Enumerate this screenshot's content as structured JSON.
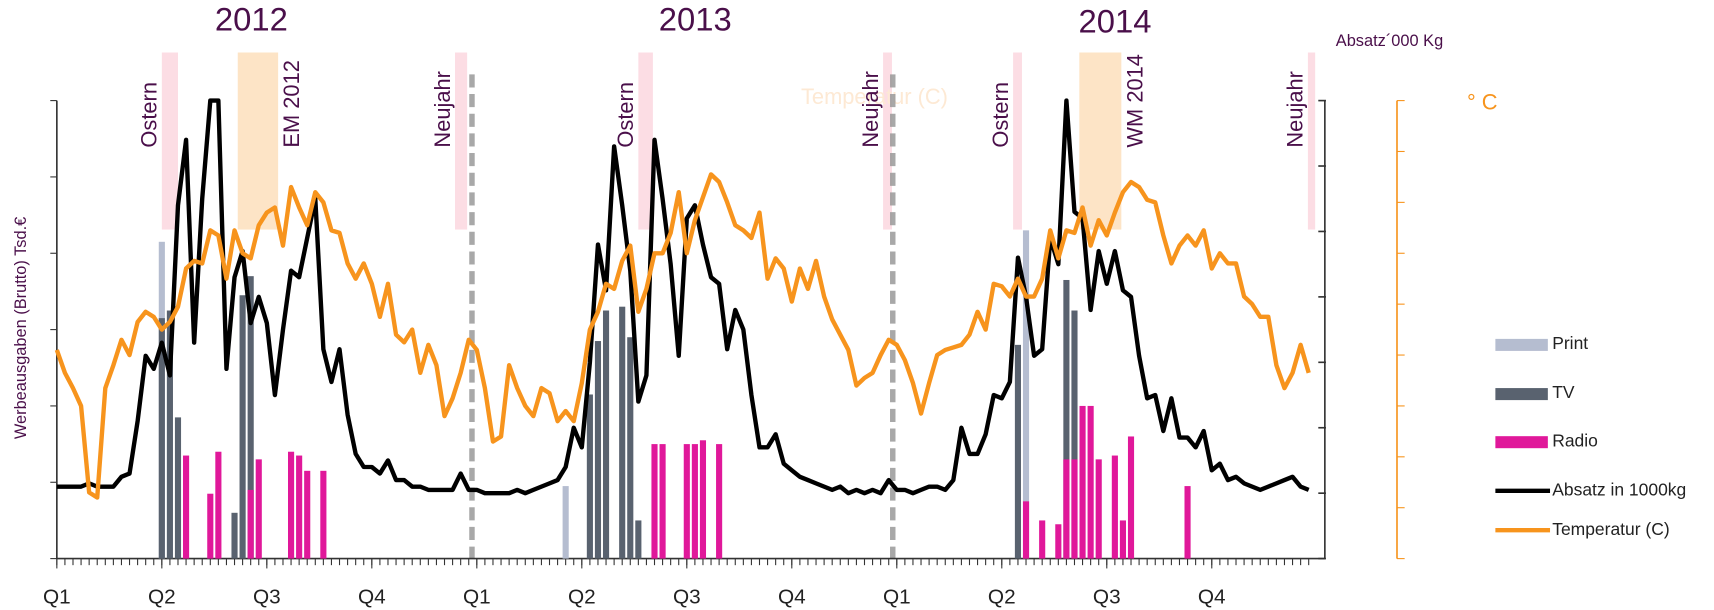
{
  "chart_data": {
    "type": "bar-line",
    "years": [
      "2012",
      "2013",
      "2014"
    ],
    "y_label": "Werbeausgaben (Brutto) Tsd.€",
    "y2_label": "Absatz´000 Kg",
    "y3_label": "° C",
    "ghost_label": "Temperatur (C)",
    "xlim": [
      0,
      157
    ],
    "xticks": [
      {
        "value": 0,
        "label": "Q1"
      },
      {
        "value": 13,
        "label": "Q2"
      },
      {
        "value": 26,
        "label": "Q3"
      },
      {
        "value": 39,
        "label": "Q4"
      },
      {
        "value": 52,
        "label": "Q1"
      },
      {
        "value": 65,
        "label": "Q2"
      },
      {
        "value": 78,
        "label": "Q3"
      },
      {
        "value": 91,
        "label": "Q4"
      },
      {
        "value": 104,
        "label": "Q1"
      },
      {
        "value": 117,
        "label": "Q2"
      },
      {
        "value": 130,
        "label": "Q3"
      },
      {
        "value": 143,
        "label": "Q4"
      }
    ],
    "ylim": [
      0,
      6
    ],
    "yticks": [
      0,
      1,
      2,
      3,
      4,
      5,
      6
    ],
    "y2lim": [
      0,
      7
    ],
    "y2ticks": [
      0,
      1,
      2,
      3,
      4,
      5,
      6,
      7
    ],
    "y3lim": [
      0,
      9
    ],
    "y3ticks": [
      0,
      1,
      2,
      3,
      4,
      5,
      6,
      7,
      8,
      9
    ],
    "legend": "right",
    "events": [
      {
        "label": "Ostern",
        "x": [
          13,
          15
        ],
        "color": "#fcdde4"
      },
      {
        "label": "EM 2012",
        "x": [
          22.4,
          27.4
        ],
        "color": "#fde4c6"
      },
      {
        "label": "Neujahr",
        "x": [
          49.3,
          50.8
        ],
        "color": "#fcdde4",
        "line": 51.4
      },
      {
        "label": "Ostern",
        "x": [
          72,
          73.8
        ],
        "color": "#fcdde4"
      },
      {
        "label": "Neujahr",
        "x": [
          102.3,
          103.4
        ],
        "color": "#fcdde4",
        "line": 103.5
      },
      {
        "label": "Ostern",
        "x": [
          118.4,
          119.5
        ],
        "color": "#fcdde4"
      },
      {
        "label": "WM 2014",
        "x": [
          126.6,
          131.8
        ],
        "color": "#fde4c6"
      },
      {
        "label": "Neujahr",
        "x": [
          154.9,
          155.8
        ],
        "color": "#fcdde4"
      }
    ],
    "x": [
      0,
      1,
      2,
      3,
      4,
      5,
      6,
      7,
      8,
      9,
      10,
      11,
      12,
      13,
      14,
      15,
      16,
      17,
      18,
      19,
      20,
      21,
      22,
      23,
      24,
      25,
      26,
      27,
      28,
      29,
      30,
      31,
      32,
      33,
      34,
      35,
      36,
      37,
      38,
      39,
      40,
      41,
      42,
      43,
      44,
      45,
      46,
      47,
      48,
      49,
      50,
      51,
      52,
      53,
      54,
      55,
      56,
      57,
      58,
      59,
      60,
      61,
      62,
      63,
      64,
      65,
      66,
      67,
      68,
      69,
      70,
      71,
      72,
      73,
      74,
      75,
      76,
      77,
      78,
      79,
      80,
      81,
      82,
      83,
      84,
      85,
      86,
      87,
      88,
      89,
      90,
      91,
      92,
      93,
      94,
      95,
      96,
      97,
      98,
      99,
      100,
      101,
      102,
      103,
      104,
      105,
      106,
      107,
      108,
      109,
      110,
      111,
      112,
      113,
      114,
      115,
      116,
      117,
      118,
      119,
      120,
      121,
      122,
      123,
      124,
      125,
      126,
      127,
      128,
      129,
      130,
      131,
      132,
      133,
      134,
      135,
      136,
      137,
      138,
      139,
      140,
      141,
      142,
      143,
      144,
      145,
      146,
      147,
      148,
      149,
      150,
      151,
      152,
      153,
      154,
      155
    ],
    "series": [
      {
        "name": "Print",
        "type": "bar",
        "color": "#b5bdd0",
        "x": [
          13,
          63,
          120
        ],
        "values": [
          4.15,
          0.95,
          4.3
        ]
      },
      {
        "name": "TV",
        "type": "bar",
        "color": "#59626f",
        "x": [
          13,
          14,
          15,
          22,
          23,
          24,
          66,
          67,
          68,
          70,
          71,
          72,
          119,
          125,
          126
        ],
        "values": [
          3.15,
          3.25,
          1.85,
          0.6,
          3.45,
          3.7,
          2.15,
          2.85,
          3.25,
          3.3,
          2.9,
          0.5,
          2.8,
          3.65,
          3.25
        ]
      },
      {
        "name": "Radio",
        "type": "bar",
        "color": "#e0189a",
        "x": [
          16,
          19,
          20,
          24,
          25,
          29,
          30,
          31,
          33,
          74,
          75,
          78,
          79,
          80,
          82,
          120,
          122,
          124,
          125,
          126,
          127,
          128,
          129,
          131,
          132,
          133,
          140
        ],
        "values": [
          1.35,
          0.85,
          1.4,
          0.9,
          1.3,
          1.4,
          1.35,
          1.15,
          1.15,
          1.5,
          1.5,
          1.5,
          1.5,
          1.55,
          1.5,
          0.75,
          0.5,
          0.45,
          1.3,
          1.3,
          2.0,
          2.0,
          1.3,
          1.35,
          0.5,
          1.6,
          0.95
        ]
      },
      {
        "name": "Absatz in 1000kg",
        "type": "line",
        "axis": "y2",
        "color": "#000000",
        "values": [
          1.1,
          1.1,
          1.1,
          1.1,
          1.15,
          1.1,
          1.1,
          1.1,
          1.25,
          1.3,
          2.1,
          3.1,
          2.9,
          3.3,
          2.8,
          5.4,
          6.4,
          3.3,
          5.5,
          7.0,
          7.0,
          2.9,
          4.3,
          4.7,
          3.6,
          4.0,
          3.6,
          2.5,
          3.5,
          4.4,
          4.3,
          4.9,
          5.5,
          3.2,
          2.7,
          3.2,
          2.2,
          1.6,
          1.4,
          1.4,
          1.3,
          1.5,
          1.2,
          1.2,
          1.1,
          1.1,
          1.05,
          1.05,
          1.05,
          1.05,
          1.3,
          1.05,
          1.05,
          1.0,
          1.0,
          1.0,
          1.0,
          1.05,
          1.0,
          1.05,
          1.1,
          1.15,
          1.2,
          1.4,
          2.0,
          1.7,
          3.0,
          4.8,
          4.1,
          6.3,
          5.4,
          4.4,
          2.4,
          2.8,
          6.4,
          5.5,
          4.5,
          3.1,
          5.2,
          5.4,
          4.8,
          4.3,
          4.2,
          3.2,
          3.8,
          3.5,
          2.5,
          1.7,
          1.7,
          1.9,
          1.45,
          1.35,
          1.25,
          1.2,
          1.15,
          1.1,
          1.05,
          1.1,
          1.0,
          1.05,
          1.0,
          1.05,
          1.0,
          1.2,
          1.05,
          1.05,
          1.0,
          1.05,
          1.1,
          1.1,
          1.05,
          1.2,
          2.0,
          1.6,
          1.6,
          1.9,
          2.5,
          2.45,
          2.7,
          4.6,
          4.0,
          3.1,
          3.2,
          4.9,
          4.5,
          7.0,
          5.3,
          5.2,
          3.8,
          4.7,
          4.2,
          4.7,
          4.1,
          4.0,
          3.1,
          2.45,
          2.5,
          1.95,
          2.45,
          1.85,
          1.85,
          1.7,
          1.95,
          1.35,
          1.45,
          1.2,
          1.25,
          1.15,
          1.1,
          1.05,
          1.1,
          1.15,
          1.2,
          1.25,
          1.1,
          1.05
        ]
      },
      {
        "name": "Temperatur (C)",
        "type": "line",
        "axis": "y3",
        "color": "#f7941d",
        "values": [
          4.1,
          3.65,
          3.35,
          3.0,
          1.3,
          1.2,
          3.35,
          3.8,
          4.3,
          4.0,
          4.65,
          4.85,
          4.75,
          4.5,
          4.65,
          4.95,
          5.7,
          5.85,
          5.8,
          6.45,
          6.35,
          5.5,
          6.45,
          6.0,
          5.9,
          6.55,
          6.8,
          6.9,
          6.15,
          7.3,
          6.9,
          6.55,
          7.2,
          7.0,
          6.45,
          6.4,
          5.8,
          5.5,
          5.8,
          5.4,
          4.75,
          5.4,
          4.4,
          4.25,
          4.5,
          3.65,
          4.2,
          3.8,
          2.8,
          3.15,
          3.65,
          4.3,
          4.1,
          3.35,
          2.3,
          2.4,
          3.8,
          3.35,
          3.0,
          2.8,
          3.35,
          3.25,
          2.7,
          2.9,
          2.7,
          3.45,
          4.5,
          4.85,
          5.4,
          5.3,
          5.85,
          6.15,
          4.85,
          5.3,
          6.0,
          6.0,
          6.4,
          7.2,
          6.0,
          6.65,
          7.1,
          7.55,
          7.4,
          7.0,
          6.55,
          6.45,
          6.3,
          6.8,
          5.5,
          5.9,
          5.7,
          5.05,
          5.7,
          5.3,
          5.85,
          5.15,
          4.7,
          4.4,
          4.1,
          3.4,
          3.55,
          3.65,
          4.0,
          4.3,
          4.2,
          3.9,
          3.45,
          2.85,
          3.45,
          4.0,
          4.1,
          4.15,
          4.2,
          4.4,
          4.85,
          4.5,
          5.4,
          5.35,
          5.15,
          5.5,
          5.15,
          5.15,
          5.5,
          6.45,
          5.9,
          6.45,
          6.4,
          6.9,
          6.15,
          6.65,
          6.35,
          6.8,
          7.2,
          7.4,
          7.3,
          7.05,
          7.0,
          6.35,
          5.8,
          6.15,
          6.35,
          6.15,
          6.45,
          5.7,
          6.0,
          5.8,
          5.8,
          5.15,
          5.0,
          4.75,
          4.75,
          3.8,
          3.35,
          3.65,
          4.2,
          3.65
        ]
      }
    ]
  }
}
